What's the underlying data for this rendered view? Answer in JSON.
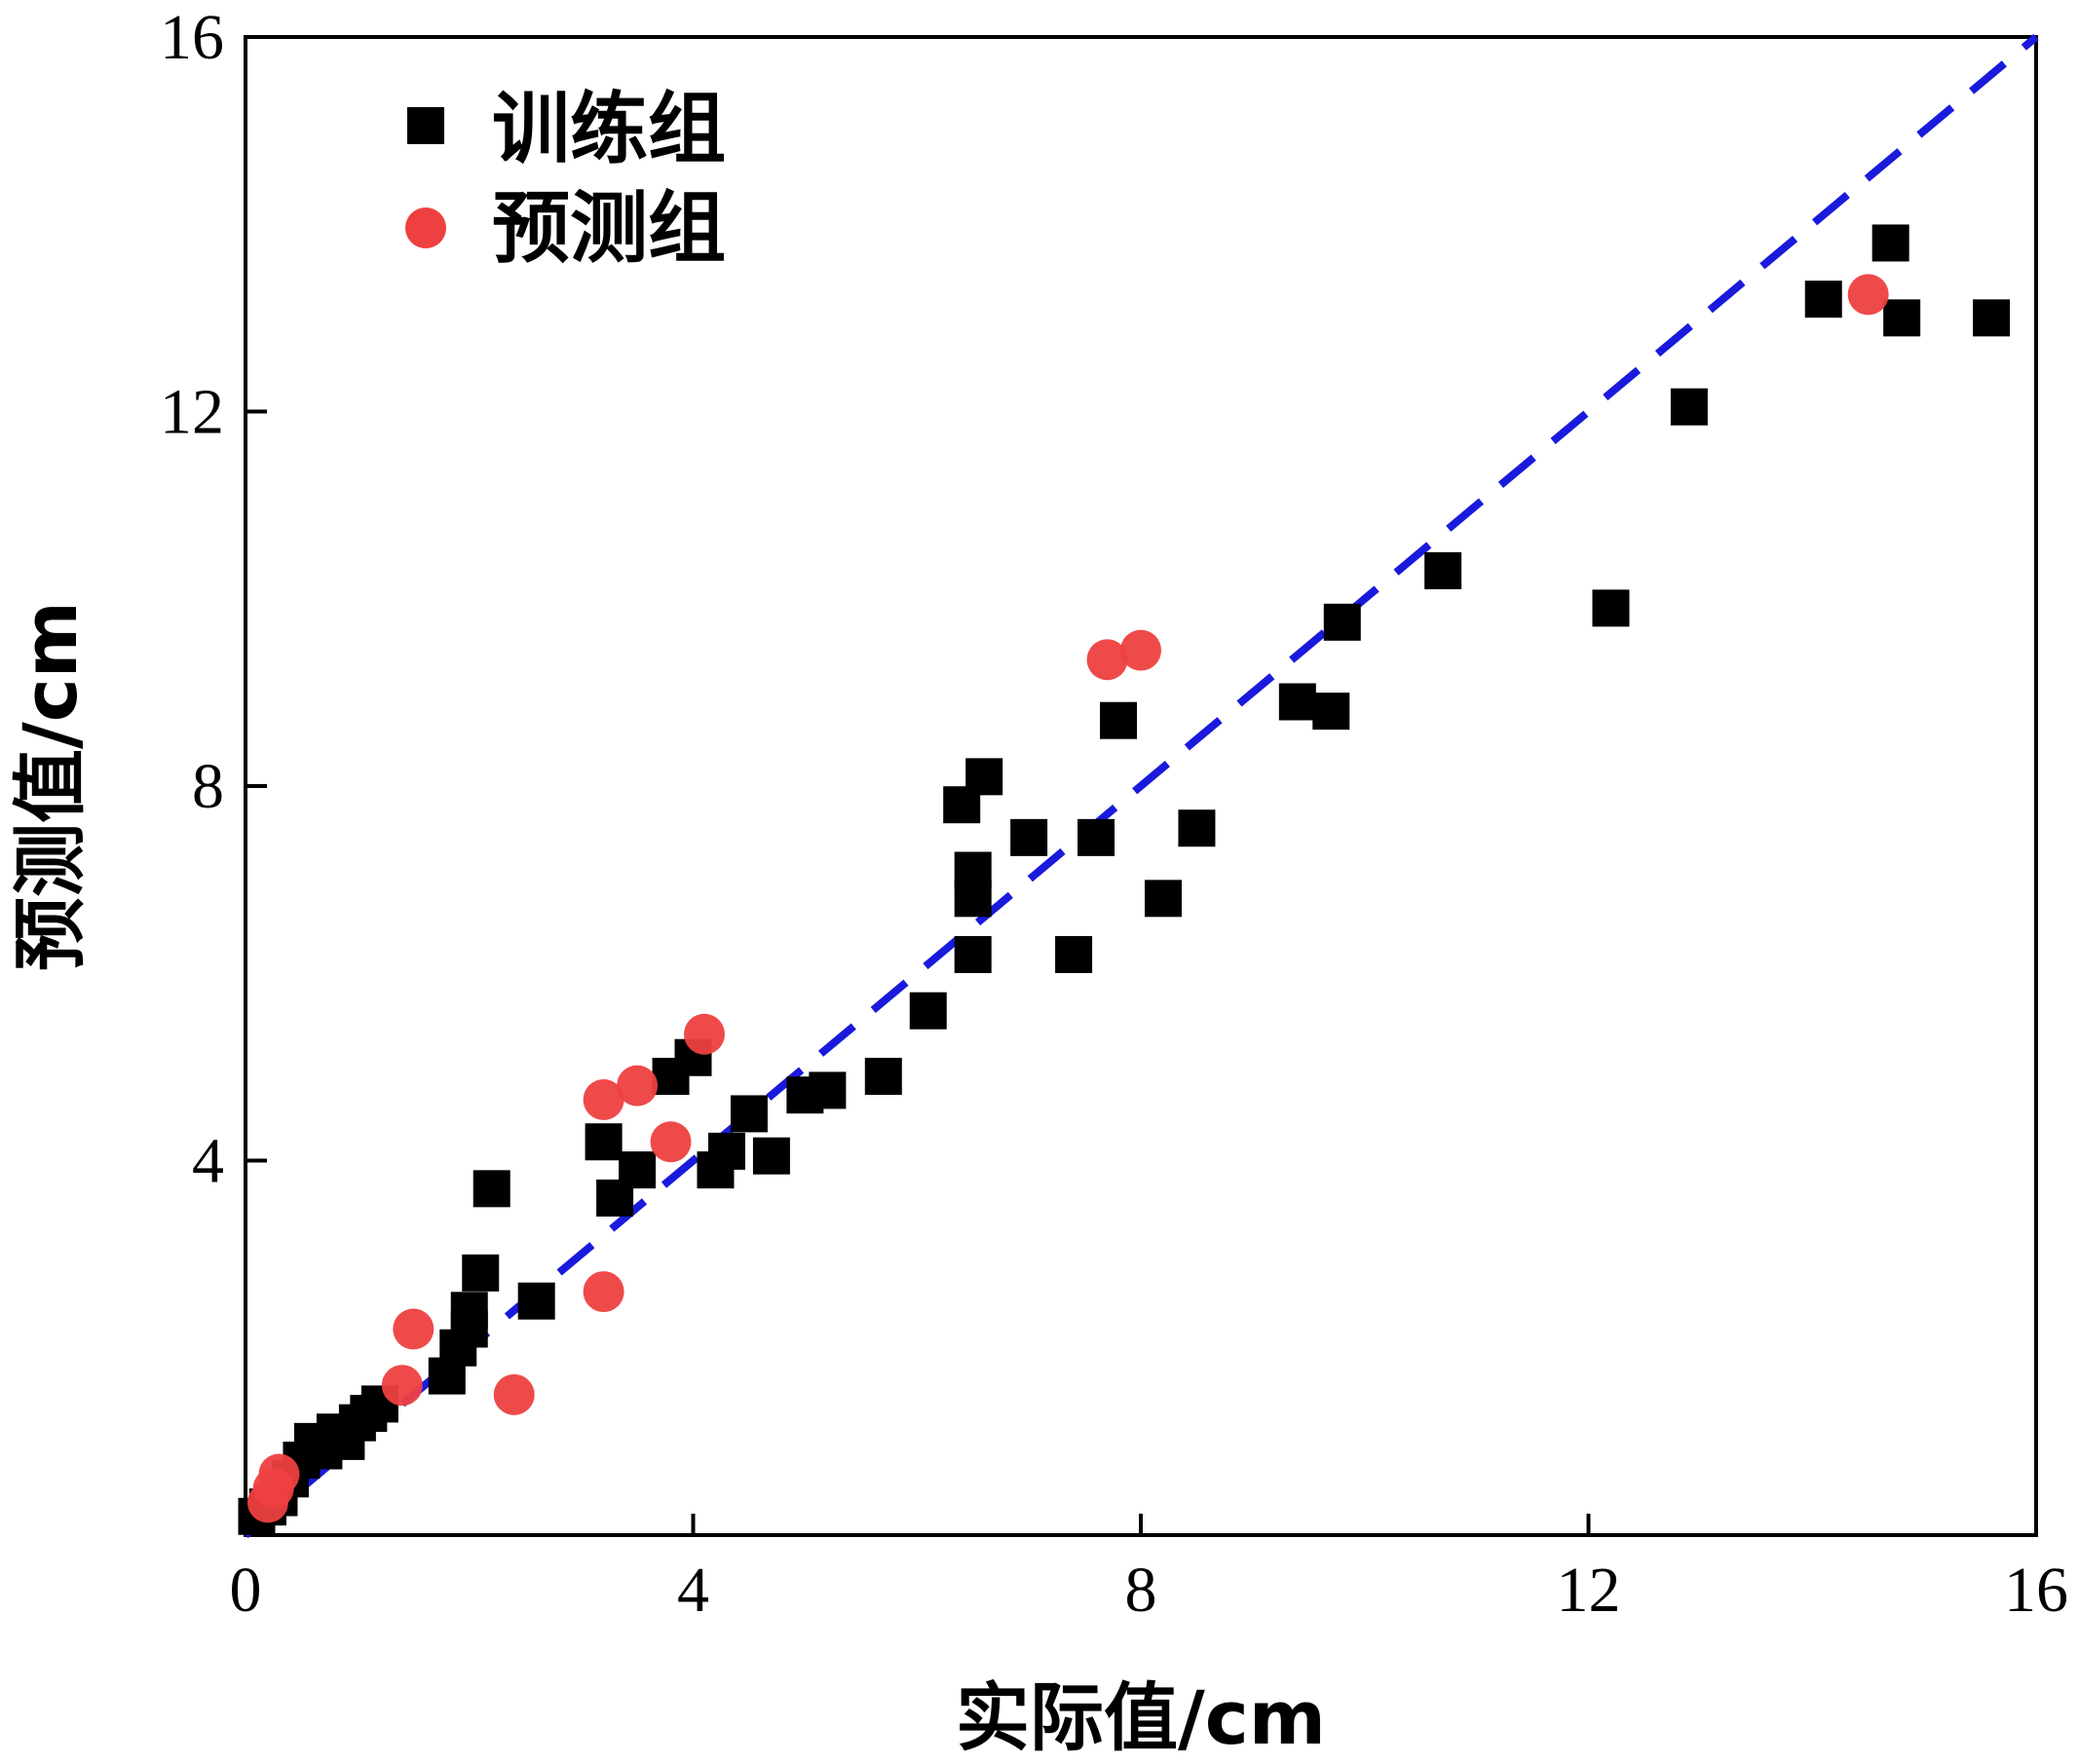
{
  "chart_data": {
    "type": "scatter",
    "title": "",
    "xlabel": "实际值/cm",
    "ylabel": "预测值/cm",
    "xlim": [
      0,
      16
    ],
    "ylim": [
      0,
      16
    ],
    "xticks": [
      "0",
      "4",
      "8",
      "12",
      "16"
    ],
    "yticks": [
      "4",
      "8",
      "12",
      "16"
    ],
    "legend_position": "top-left",
    "reference_line": {
      "type": "y=x",
      "style": "dashed",
      "color": "#1a1adc"
    },
    "series": [
      {
        "name": "训练组",
        "marker": "square",
        "color": "#000000",
        "points": [
          [
            0.1,
            0.2
          ],
          [
            0.2,
            0.3
          ],
          [
            0.3,
            0.4
          ],
          [
            0.4,
            0.6
          ],
          [
            0.5,
            0.8
          ],
          [
            0.6,
            1.0
          ],
          [
            0.7,
            0.9
          ],
          [
            0.8,
            1.1
          ],
          [
            0.9,
            1.0
          ],
          [
            1.0,
            1.2
          ],
          [
            1.1,
            1.3
          ],
          [
            1.2,
            1.4
          ],
          [
            1.8,
            1.7
          ],
          [
            1.9,
            2.0
          ],
          [
            2.0,
            2.2
          ],
          [
            2.0,
            2.4
          ],
          [
            2.1,
            2.8
          ],
          [
            2.2,
            3.7
          ],
          [
            2.6,
            2.5
          ],
          [
            3.2,
            4.2
          ],
          [
            3.3,
            3.6
          ],
          [
            3.5,
            3.9
          ],
          [
            3.8,
            4.9
          ],
          [
            4.0,
            5.1
          ],
          [
            4.2,
            3.9
          ],
          [
            4.3,
            4.1
          ],
          [
            4.5,
            4.5
          ],
          [
            4.7,
            4.05
          ],
          [
            5.0,
            4.7
          ],
          [
            5.2,
            4.75
          ],
          [
            5.7,
            4.9
          ],
          [
            6.1,
            5.6
          ],
          [
            6.4,
            7.8
          ],
          [
            6.5,
            7.1
          ],
          [
            6.5,
            6.8
          ],
          [
            6.5,
            6.2
          ],
          [
            6.6,
            8.1
          ],
          [
            7.0,
            7.45
          ],
          [
            7.4,
            6.2
          ],
          [
            7.6,
            7.45
          ],
          [
            7.8,
            8.7
          ],
          [
            8.2,
            6.8
          ],
          [
            8.5,
            7.55
          ],
          [
            9.4,
            8.9
          ],
          [
            9.7,
            8.8
          ],
          [
            9.8,
            9.75
          ],
          [
            10.7,
            10.3
          ],
          [
            12.2,
            9.9
          ],
          [
            12.9,
            12.05
          ],
          [
            14.1,
            13.2
          ],
          [
            14.7,
            13.8
          ],
          [
            14.8,
            13.0
          ],
          [
            15.6,
            13.0
          ]
        ]
      },
      {
        "name": "预测组",
        "marker": "circle",
        "color": "#ee4040",
        "points": [
          [
            0.2,
            0.35
          ],
          [
            0.25,
            0.5
          ],
          [
            0.3,
            0.65
          ],
          [
            1.4,
            1.6
          ],
          [
            1.5,
            2.2
          ],
          [
            2.4,
            1.5
          ],
          [
            3.2,
            4.65
          ],
          [
            3.2,
            2.6
          ],
          [
            3.5,
            4.8
          ],
          [
            3.8,
            4.2
          ],
          [
            4.1,
            5.35
          ],
          [
            7.7,
            9.35
          ],
          [
            8.0,
            9.45
          ],
          [
            14.5,
            13.25
          ]
        ]
      }
    ]
  }
}
